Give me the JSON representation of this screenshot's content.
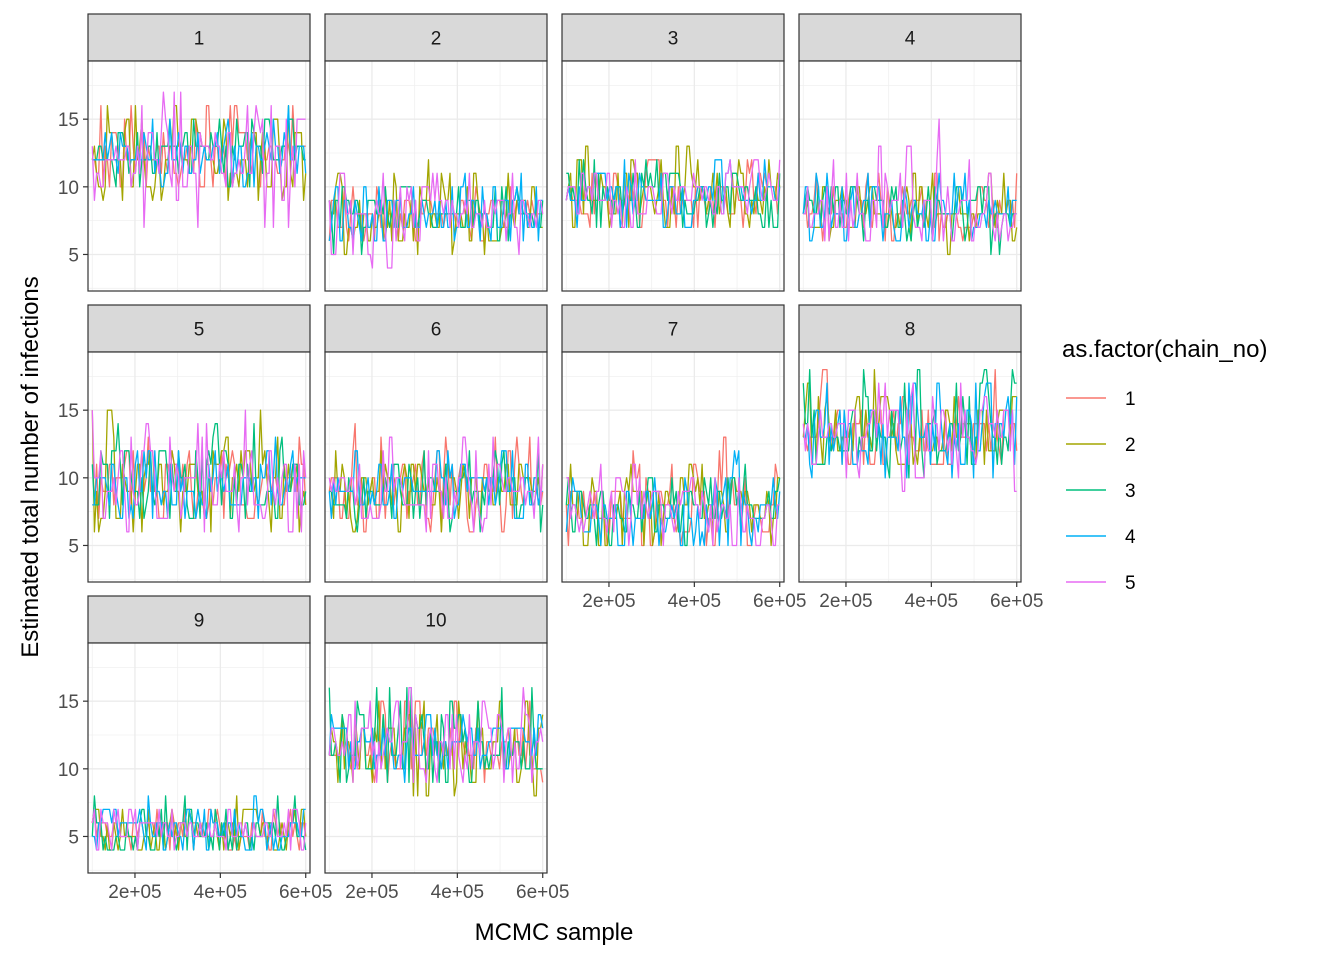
{
  "chart_data": {
    "type": "line",
    "facet_by": "region",
    "xlabel": "MCMC sample",
    "ylabel": "Estimated total number of infections",
    "xlim": [
      90000,
      610000
    ],
    "ylim": [
      2.3,
      19.3
    ],
    "x_ticks": [
      200000,
      400000,
      600000
    ],
    "x_tick_labels": [
      "2e+05",
      "4e+05",
      "6e+05"
    ],
    "y_ticks": [
      5,
      10,
      15
    ],
    "y_tick_labels": [
      "5",
      "10",
      "15"
    ],
    "grid": true,
    "legend": {
      "title": "as.factor(chain_no)",
      "placement": "right",
      "entries": [
        {
          "label": "1",
          "color": "#F8766D"
        },
        {
          "label": "2",
          "color": "#A3A500"
        },
        {
          "label": "3",
          "color": "#00BF7D"
        },
        {
          "label": "4",
          "color": "#00B0F6"
        },
        {
          "label": "5",
          "color": "#E76BF3"
        }
      ]
    },
    "x_samples": {
      "start": 100000,
      "end": 600000,
      "count": 100
    },
    "panels": [
      {
        "label": "1",
        "series": [
          {
            "name": "1",
            "mean": 12.5,
            "min": 10,
            "max": 16
          },
          {
            "name": "2",
            "mean": 12.5,
            "min": 9,
            "max": 18
          },
          {
            "name": "3",
            "mean": 12.3,
            "min": 10,
            "max": 15
          },
          {
            "name": "4",
            "mean": 12.4,
            "min": 10,
            "max": 16
          },
          {
            "name": "5",
            "mean": 12.6,
            "min": 7,
            "max": 18
          }
        ]
      },
      {
        "label": "2",
        "series": [
          {
            "name": "1",
            "mean": 8,
            "min": 6,
            "max": 10
          },
          {
            "name": "2",
            "mean": 8,
            "min": 5,
            "max": 12
          },
          {
            "name": "3",
            "mean": 8,
            "min": 5,
            "max": 10
          },
          {
            "name": "4",
            "mean": 8,
            "min": 6,
            "max": 11
          },
          {
            "name": "5",
            "mean": 8,
            "min": 4,
            "max": 11
          }
        ]
      },
      {
        "label": "3",
        "series": [
          {
            "name": "1",
            "mean": 9.5,
            "min": 7,
            "max": 12
          },
          {
            "name": "2",
            "mean": 9.5,
            "min": 7,
            "max": 13
          },
          {
            "name": "3",
            "mean": 9.3,
            "min": 7,
            "max": 12
          },
          {
            "name": "4",
            "mean": 9.4,
            "min": 7,
            "max": 12
          },
          {
            "name": "5",
            "mean": 9.5,
            "min": 7,
            "max": 12
          }
        ]
      },
      {
        "label": "4",
        "series": [
          {
            "name": "1",
            "mean": 8.3,
            "min": 6,
            "max": 11
          },
          {
            "name": "2",
            "mean": 8.3,
            "min": 5,
            "max": 11
          },
          {
            "name": "3",
            "mean": 8.2,
            "min": 5,
            "max": 10
          },
          {
            "name": "4",
            "mean": 8.2,
            "min": 6,
            "max": 11
          },
          {
            "name": "5",
            "mean": 8.4,
            "min": 6,
            "max": 15
          }
        ]
      },
      {
        "label": "5",
        "series": [
          {
            "name": "1",
            "mean": 9.5,
            "min": 7,
            "max": 13
          },
          {
            "name": "2",
            "mean": 9.5,
            "min": 6,
            "max": 15
          },
          {
            "name": "3",
            "mean": 9.5,
            "min": 7,
            "max": 14
          },
          {
            "name": "4",
            "mean": 9.5,
            "min": 7,
            "max": 13
          },
          {
            "name": "5",
            "mean": 9.6,
            "min": 6,
            "max": 15
          }
        ]
      },
      {
        "label": "6",
        "series": [
          {
            "name": "1",
            "mean": 9.2,
            "min": 6,
            "max": 14
          },
          {
            "name": "2",
            "mean": 9.2,
            "min": 6,
            "max": 12
          },
          {
            "name": "3",
            "mean": 9.1,
            "min": 6,
            "max": 12
          },
          {
            "name": "4",
            "mean": 9.1,
            "min": 7,
            "max": 12
          },
          {
            "name": "5",
            "mean": 9.3,
            "min": 6,
            "max": 13
          }
        ]
      },
      {
        "label": "7",
        "series": [
          {
            "name": "1",
            "mean": 8,
            "min": 5,
            "max": 13
          },
          {
            "name": "2",
            "mean": 8,
            "min": 5,
            "max": 11
          },
          {
            "name": "3",
            "mean": 7.9,
            "min": 5,
            "max": 11
          },
          {
            "name": "4",
            "mean": 8,
            "min": 5,
            "max": 12
          },
          {
            "name": "5",
            "mean": 8,
            "min": 5,
            "max": 11
          }
        ]
      },
      {
        "label": "8",
        "series": [
          {
            "name": "1",
            "mean": 13.5,
            "min": 11,
            "max": 18
          },
          {
            "name": "2",
            "mean": 13.6,
            "min": 11,
            "max": 18
          },
          {
            "name": "3",
            "mean": 13.5,
            "min": 10,
            "max": 18
          },
          {
            "name": "4",
            "mean": 13.4,
            "min": 10,
            "max": 17
          },
          {
            "name": "5",
            "mean": 13.6,
            "min": 9,
            "max": 17
          }
        ]
      },
      {
        "label": "9",
        "series": [
          {
            "name": "1",
            "mean": 5.5,
            "min": 4,
            "max": 7
          },
          {
            "name": "2",
            "mean": 5.5,
            "min": 4,
            "max": 8
          },
          {
            "name": "3",
            "mean": 5.3,
            "min": 4,
            "max": 8
          },
          {
            "name": "4",
            "mean": 5.4,
            "min": 4,
            "max": 8
          },
          {
            "name": "5",
            "mean": 5.5,
            "min": 3,
            "max": 7
          }
        ]
      },
      {
        "label": "10",
        "series": [
          {
            "name": "1",
            "mean": 11.8,
            "min": 9,
            "max": 15
          },
          {
            "name": "2",
            "mean": 11.8,
            "min": 8,
            "max": 16
          },
          {
            "name": "3",
            "mean": 11.7,
            "min": 9,
            "max": 16
          },
          {
            "name": "4",
            "mean": 11.8,
            "min": 9,
            "max": 14
          },
          {
            "name": "5",
            "mean": 11.9,
            "min": 9,
            "max": 16
          }
        ]
      }
    ]
  }
}
